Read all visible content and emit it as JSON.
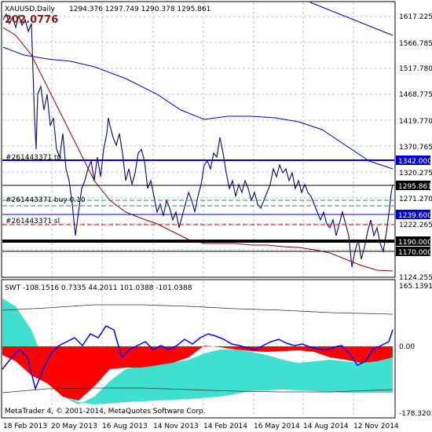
{
  "header": {
    "symbol": "XAUUSD,Daily",
    "ohlc": "1294.376 1297.749 1290.378 1295.861",
    "countdown": "202.0776"
  },
  "price_axis": {
    "labels": [
      "1617.225",
      "1566.785",
      "1517.780",
      "1468.775",
      "1419.770",
      "1370.765",
      "1320.275",
      "1271.270",
      "1222.265",
      "1124.255"
    ]
  },
  "price_tags": [
    {
      "text": "1342.000",
      "bg": "#0000CD",
      "fg": "#FFFFFF"
    },
    {
      "text": "1295.861",
      "bg": "#000000",
      "fg": "#FFFFFF"
    },
    {
      "text": "1239.600",
      "bg": "#0000CD",
      "fg": "#FFFFFF"
    },
    {
      "text": "1190.000",
      "bg": "#000000",
      "fg": "#FFFFFF"
    },
    {
      "text": "1170.000",
      "bg": "#000000",
      "fg": "#FFFFFF"
    }
  ],
  "order_labels": {
    "tp": "#261443371 tp",
    "buy": "#261443371 buy 0.10",
    "sl": "#261443371 sl"
  },
  "indicator": {
    "header": "SWT -108.1516 0.7335 44.2011 101.0388 -101.0388",
    "axis_labels": [
      "165.1391",
      "0.00",
      "-178.3203"
    ]
  },
  "watermark": "MetaTrader 4, © 2001-2014, MetaQuotes Software Corp.",
  "time_axis": {
    "labels": [
      "18 Feb 2013",
      "20 May 2013",
      "16 Aug 2013",
      "14 Nov 2013",
      "14 Feb 2014",
      "16 May 2014",
      "14 Aug 2014",
      "12 Nov 2014"
    ]
  },
  "colors": {
    "price": "#191970",
    "ma_fast": "#8B0000",
    "ma_slow": "#0000CD",
    "hist_red": "#FF0000",
    "hist_cyan": "#40E0D0",
    "osc": "#0000FF",
    "grid": "#A9C7D6"
  }
}
